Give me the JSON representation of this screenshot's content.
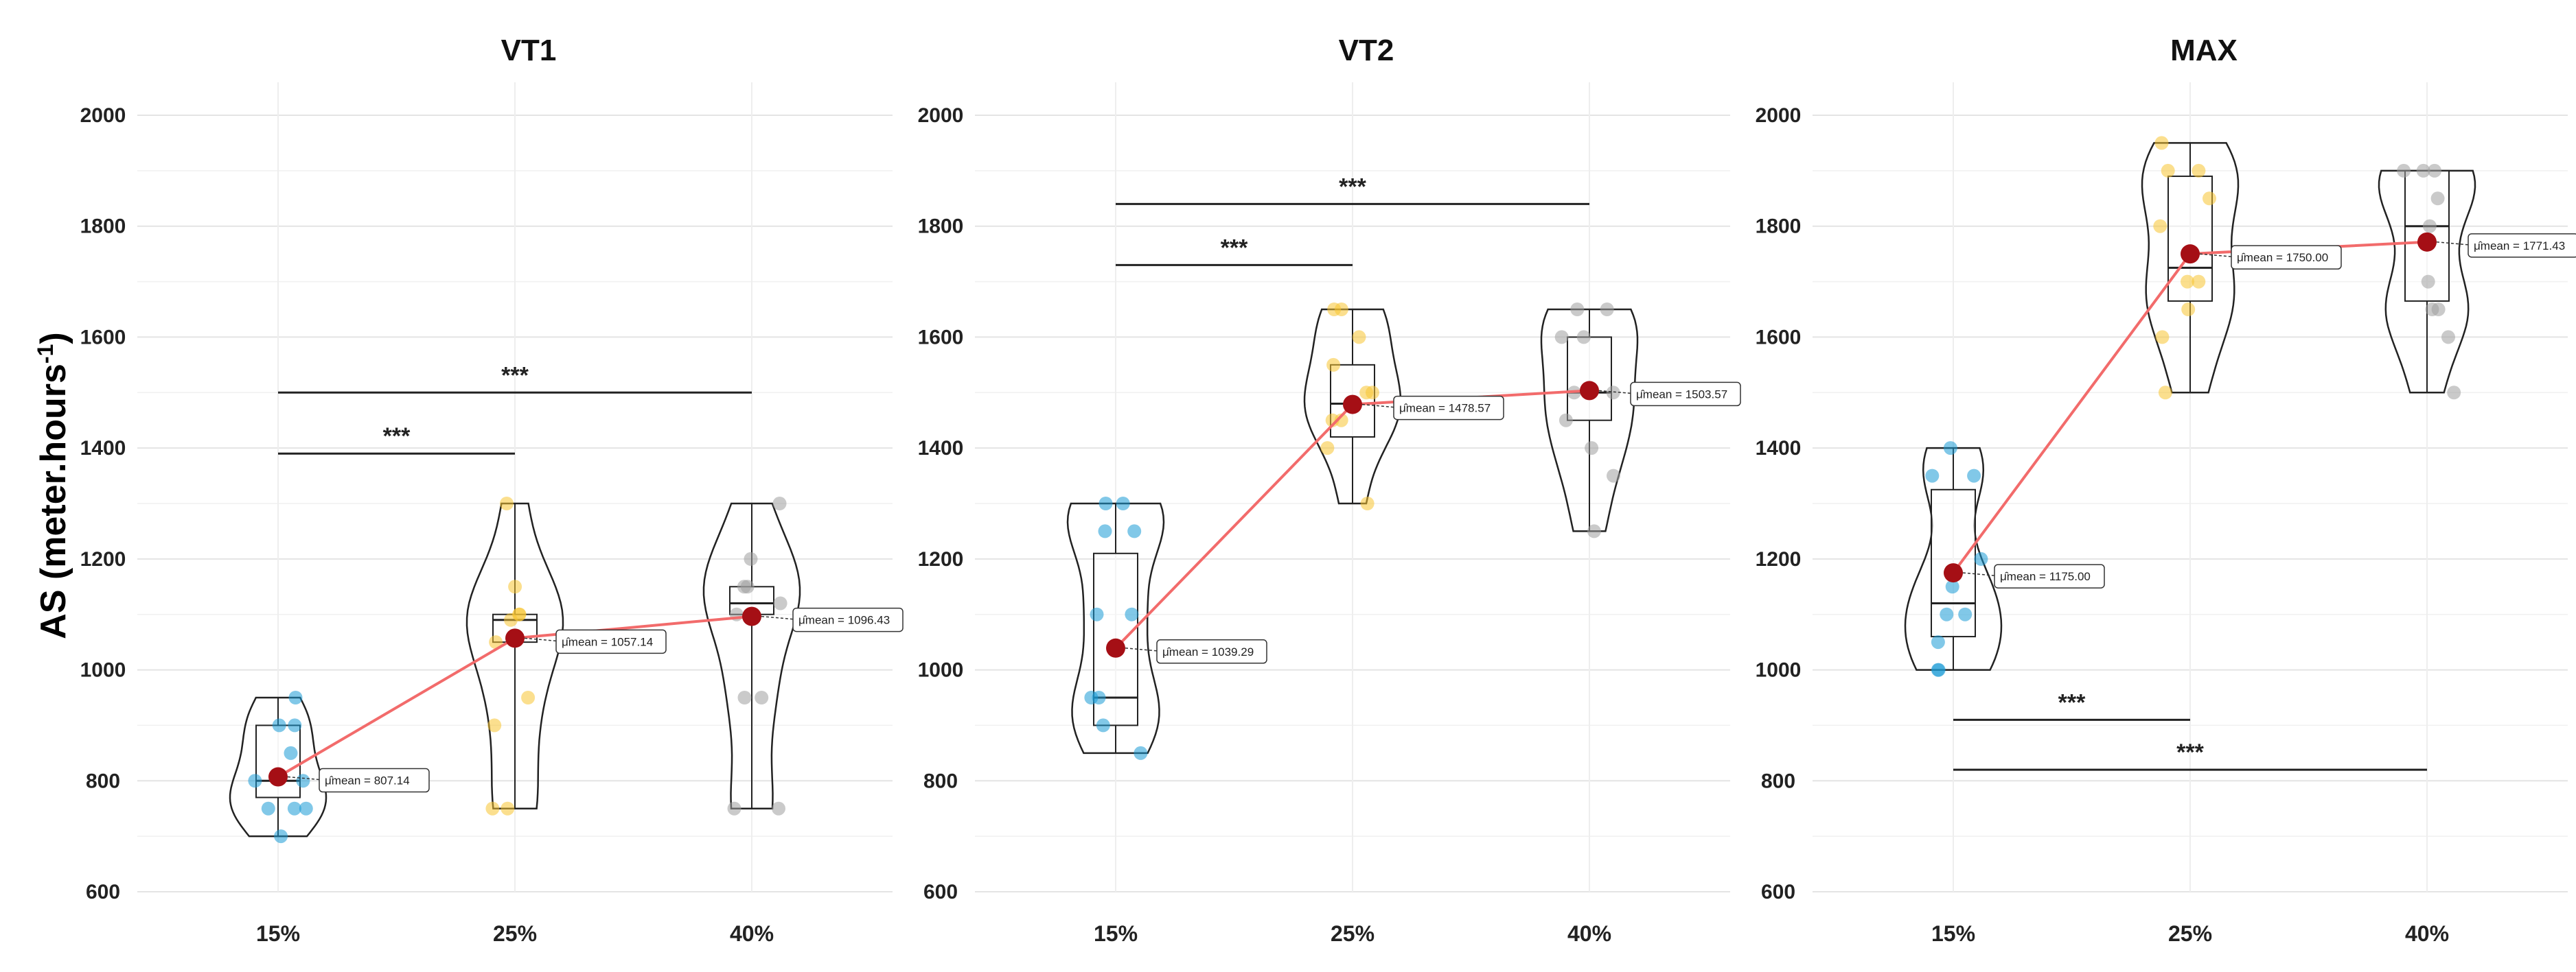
{
  "figure": {
    "y_axis_label": "AS (meter.hours",
    "y_axis_label_sup": "-1",
    "y_axis_label_close": ")"
  },
  "colors": {
    "15%": "#1a9bd6",
    "25%": "#f7c531",
    "40%": "#9e9e9e",
    "mean_point": "#a50f15",
    "mean_line": "#f26b6b",
    "bracket": "#222222"
  },
  "chart_data": [
    {
      "type": "violin-box",
      "title": "VT1",
      "categories": [
        "15%",
        "25%",
        "40%"
      ],
      "ylim": [
        600,
        2000
      ],
      "yticks": [
        600,
        800,
        1000,
        1200,
        1400,
        1600,
        1800,
        2000
      ],
      "grid": true,
      "means": [
        807.14,
        1057.14,
        1096.43
      ],
      "mean_labels": [
        "μ̂mean = 807.14",
        "μ̂mean = 1057.14",
        "μ̂mean = 1096.43"
      ],
      "boxes": [
        {
          "q1": 770,
          "median": 800,
          "q3": 900,
          "min": 700,
          "max": 950
        },
        {
          "q1": 1050,
          "median": 1090,
          "q3": 1100,
          "min": 750,
          "max": 1300
        },
        {
          "q1": 1100,
          "median": 1120,
          "q3": 1150,
          "min": 750,
          "max": 1300
        }
      ],
      "points": [
        [
          700,
          750,
          750,
          750,
          800,
          800,
          850,
          900,
          900,
          950
        ],
        [
          750,
          750,
          900,
          950,
          1050,
          1090,
          1100,
          1100,
          1150,
          1300
        ],
        [
          750,
          750,
          950,
          950,
          1100,
          1120,
          1150,
          1150,
          1200,
          1300
        ]
      ],
      "significance": [
        {
          "from": "15%",
          "to": "25%",
          "label": "***",
          "y": 1390
        },
        {
          "from": "15%",
          "to": "40%",
          "label": "***",
          "y": 1500
        }
      ]
    },
    {
      "type": "violin-box",
      "title": "VT2",
      "categories": [
        "15%",
        "25%",
        "40%"
      ],
      "ylim": [
        600,
        2000
      ],
      "yticks": [
        600,
        800,
        1000,
        1200,
        1400,
        1600,
        1800,
        2000
      ],
      "grid": true,
      "means": [
        1039.29,
        1478.57,
        1503.57
      ],
      "mean_labels": [
        "μ̂mean = 1039.29",
        "μ̂mean = 1478.57",
        "μ̂mean = 1503.57"
      ],
      "boxes": [
        {
          "q1": 900,
          "median": 950,
          "q3": 1210,
          "min": 850,
          "max": 1300
        },
        {
          "q1": 1420,
          "median": 1480,
          "q3": 1550,
          "min": 1300,
          "max": 1650
        },
        {
          "q1": 1450,
          "median": 1500,
          "q3": 1600,
          "min": 1250,
          "max": 1650
        }
      ],
      "points": [
        [
          850,
          900,
          950,
          950,
          1100,
          1100,
          1250,
          1250,
          1300,
          1300
        ],
        [
          1300,
          1400,
          1450,
          1450,
          1500,
          1500,
          1550,
          1600,
          1650,
          1650
        ],
        [
          1250,
          1350,
          1400,
          1450,
          1500,
          1500,
          1600,
          1600,
          1650,
          1650
        ]
      ],
      "significance": [
        {
          "from": "15%",
          "to": "25%",
          "label": "***",
          "y": 1730
        },
        {
          "from": "15%",
          "to": "40%",
          "label": "***",
          "y": 1840
        }
      ]
    },
    {
      "type": "violin-box",
      "title": "MAX",
      "categories": [
        "15%",
        "25%",
        "40%"
      ],
      "ylim": [
        600,
        2000
      ],
      "yticks": [
        600,
        800,
        1000,
        1200,
        1400,
        1600,
        1800,
        2000
      ],
      "grid": true,
      "means": [
        1175.0,
        1750.0,
        1771.43
      ],
      "mean_labels": [
        "μ̂mean = 1175.00",
        "μ̂mean = 1750.00",
        "μ̂mean = 1771.43"
      ],
      "boxes": [
        {
          "q1": 1060,
          "median": 1120,
          "q3": 1325,
          "min": 1000,
          "max": 1400
        },
        {
          "q1": 1665,
          "median": 1725,
          "q3": 1890,
          "min": 1500,
          "max": 1950
        },
        {
          "q1": 1665,
          "median": 1800,
          "q3": 1900,
          "min": 1500,
          "max": 1900
        }
      ],
      "points": [
        [
          1000,
          1000,
          1050,
          1100,
          1100,
          1150,
          1200,
          1350,
          1350,
          1400
        ],
        [
          1500,
          1600,
          1650,
          1700,
          1700,
          1800,
          1850,
          1900,
          1900,
          1950
        ],
        [
          1500,
          1600,
          1650,
          1650,
          1700,
          1800,
          1850,
          1900,
          1900,
          1900
        ]
      ],
      "significance": [
        {
          "from": "15%",
          "to": "25%",
          "label": "***",
          "y": 910
        },
        {
          "from": "15%",
          "to": "40%",
          "label": "***",
          "y": 820
        }
      ]
    }
  ]
}
